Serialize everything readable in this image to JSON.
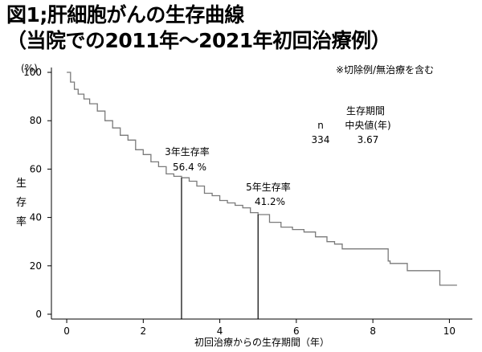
{
  "title_line1": "図1;肝細胞がんの生存曲線",
  "title_line2": "（当院での2011年〜2021年初回治療例）",
  "note": "※切除例/無治療を含む",
  "colors": {
    "curve": "#7a7a7a",
    "axis": "#000000"
  },
  "chart_data": {
    "type": "line",
    "title": "図1;肝細胞がんの生存曲線",
    "subtitle": "（当院での2011年〜2021年初回治療例）",
    "xlabel": "初回治療からの生存期間（年）",
    "ylabel": "生存率",
    "yunit": "(%)",
    "xlim": [
      -0.4,
      10.6
    ],
    "ylim": [
      -2,
      102
    ],
    "xticks": [
      0,
      2,
      4,
      6,
      8,
      10
    ],
    "yticks": [
      0,
      20,
      40,
      60,
      80,
      100
    ],
    "ytick_labels": [
      "0",
      "20",
      "40",
      "60",
      "80",
      "100"
    ],
    "grid": false,
    "series": [
      {
        "step": true,
        "x": [
          0,
          0.1,
          0.2,
          0.3,
          0.45,
          0.6,
          0.8,
          1.0,
          1.2,
          1.4,
          1.6,
          1.8,
          2.0,
          2.2,
          2.4,
          2.6,
          2.8,
          3.0,
          3.2,
          3.4,
          3.6,
          3.8,
          4.0,
          4.2,
          4.4,
          4.6,
          4.8,
          5.0,
          5.3,
          5.6,
          5.9,
          6.2,
          6.5,
          6.8,
          7.0,
          7.2,
          7.6,
          8.0,
          8.4,
          8.45,
          8.9,
          9.5,
          9.75,
          10.2
        ],
        "y": [
          100,
          96,
          93,
          91,
          89,
          87,
          84,
          80,
          77,
          74,
          72,
          68,
          66,
          63,
          61,
          58,
          57,
          56.4,
          55,
          53,
          50,
          49,
          47,
          46,
          45,
          44,
          42,
          41.2,
          38,
          36,
          35,
          34,
          32,
          30,
          29,
          27,
          27,
          27,
          22,
          21,
          18,
          18,
          12,
          12
        ]
      }
    ],
    "vlines": [
      3.0,
      5.0
    ],
    "annotations": [
      {
        "id": "3y",
        "title": "3年生存率",
        "value": "56.4 %"
      },
      {
        "id": "5y",
        "title": "5年生存率",
        "value": "41.2%"
      }
    ],
    "median_table": {
      "col1_header": "n",
      "col1_value": "334",
      "col2_header_line1": "生存期間",
      "col2_header_line2": "中央値(年)",
      "col2_value": "3.67"
    }
  }
}
